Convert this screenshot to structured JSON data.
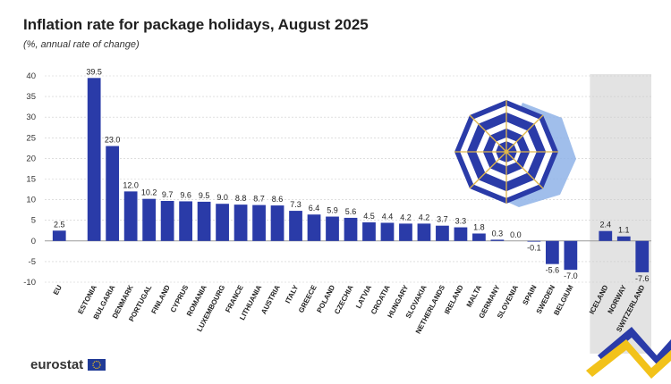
{
  "header": {
    "title": "Inflation rate for package holidays, August 2025",
    "subtitle": "(%, annual rate of change)"
  },
  "footer": {
    "logo_text": "eurostat",
    "flag_icon": "eu-flag-icon"
  },
  "colors": {
    "bar": "#2a3ba8",
    "shaded_group_bg": "#e3e3e3",
    "grid": "#cccccc"
  },
  "chart_data": {
    "type": "bar",
    "title": "Inflation rate for package holidays, August 2025",
    "subtitle": "(%, annual rate of change)",
    "xlabel": "",
    "ylabel": "",
    "ylim": [
      -10,
      40
    ],
    "yticks": [
      -10,
      -5,
      0,
      5,
      10,
      15,
      20,
      25,
      30,
      35,
      40
    ],
    "grid": true,
    "legend": "none",
    "categories": [
      "EU",
      "ESTONIA",
      "BULGARIA",
      "DENMARK",
      "PORTUGAL",
      "FINLAND",
      "CYPRUS",
      "ROMANIA",
      "LUXEMBOURG",
      "FRANCE",
      "LITHUANIA",
      "AUSTRIA",
      "ITALY",
      "GREECE",
      "POLAND",
      "CZECHIA",
      "LATVIA",
      "CROATIA",
      "HUNGARY",
      "SLOVAKIA",
      "NETHERLANDS",
      "IRELAND",
      "MALTA",
      "GERMANY",
      "SLOVENIA",
      "SPAIN",
      "SWEDEN",
      "BELGIUM",
      "ICELAND",
      "NORWAY",
      "SWITZERLAND"
    ],
    "values": [
      2.5,
      39.5,
      23.0,
      12.0,
      10.2,
      9.7,
      9.6,
      9.5,
      9.0,
      8.8,
      8.7,
      8.6,
      7.3,
      6.4,
      5.9,
      5.6,
      4.5,
      4.4,
      4.2,
      4.2,
      3.7,
      3.3,
      1.8,
      0.3,
      0.0,
      -0.1,
      -5.6,
      -7.0,
      2.4,
      1.1,
      -7.6
    ],
    "value_labels": [
      "2.5",
      "39.5",
      "23.0",
      "12.0",
      "10.2",
      "9.7",
      "9.6",
      "9.5",
      "9.0",
      "8.8",
      "8.7",
      "8.6",
      "7.3",
      "6.4",
      "5.9",
      "5.6",
      "4.5",
      "4.4",
      "4.2",
      "4.2",
      "3.7",
      "3.3",
      "1.8",
      "0.3",
      "0.0",
      "-0.1",
      "-5.6",
      "-7.0",
      "2.4",
      "1.1",
      "-7.6"
    ],
    "groups": [
      {
        "members": [
          "EU"
        ]
      },
      {
        "members": [
          "ESTONIA",
          "BULGARIA",
          "DENMARK",
          "PORTUGAL",
          "FINLAND",
          "CYPRUS",
          "ROMANIA",
          "LUXEMBOURG",
          "FRANCE",
          "LITHUANIA",
          "AUSTRIA",
          "ITALY",
          "GREECE",
          "POLAND",
          "CZECHIA",
          "LATVIA",
          "CROATIA",
          "HUNGARY",
          "SLOVAKIA",
          "NETHERLANDS",
          "IRELAND",
          "MALTA",
          "GERMANY",
          "SLOVENIA",
          "SPAIN",
          "SWEDEN",
          "BELGIUM"
        ]
      },
      {
        "members": [
          "ICELAND",
          "NORWAY",
          "SWITZERLAND"
        ],
        "shaded": true
      }
    ],
    "decoration": "beach-umbrella-icon"
  }
}
